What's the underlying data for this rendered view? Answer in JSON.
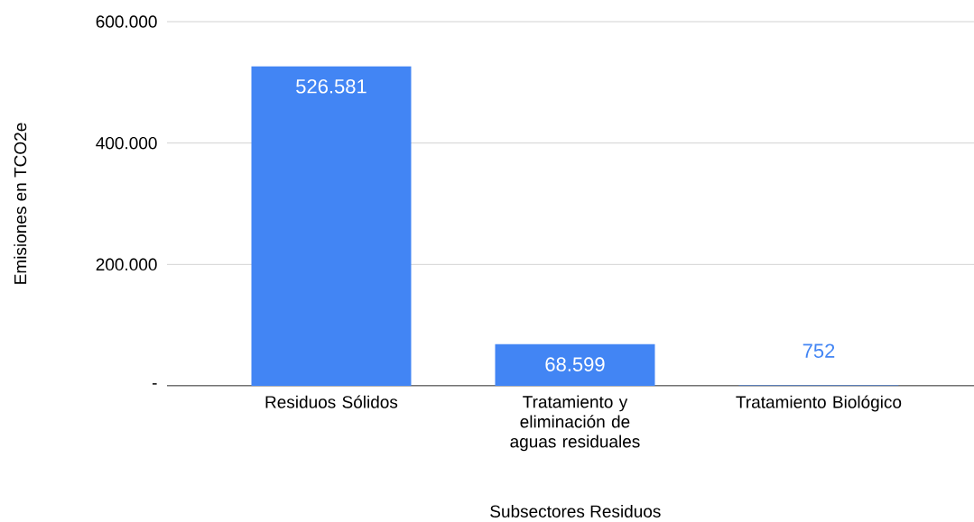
{
  "chart_data": {
    "type": "bar",
    "xlabel": "Subsectores Residuos",
    "ylabel": "Emisiones en TCO2e",
    "categories": [
      "Residuos Sólidos",
      "Tratamiento y eliminación de aguas residuales",
      "Tratamiento Biológico"
    ],
    "values": [
      526581,
      68599,
      752
    ],
    "value_labels": [
      "526.581",
      "68.599",
      "752"
    ],
    "color": "#4285f4",
    "ylim": [
      0,
      600000
    ],
    "yticks": [
      {
        "value": 0,
        "label": "-"
      },
      {
        "value": 200000,
        "label": "200.000"
      },
      {
        "value": 400000,
        "label": "400.000"
      },
      {
        "value": 600000,
        "label": "600.000"
      }
    ],
    "grid": "y"
  }
}
